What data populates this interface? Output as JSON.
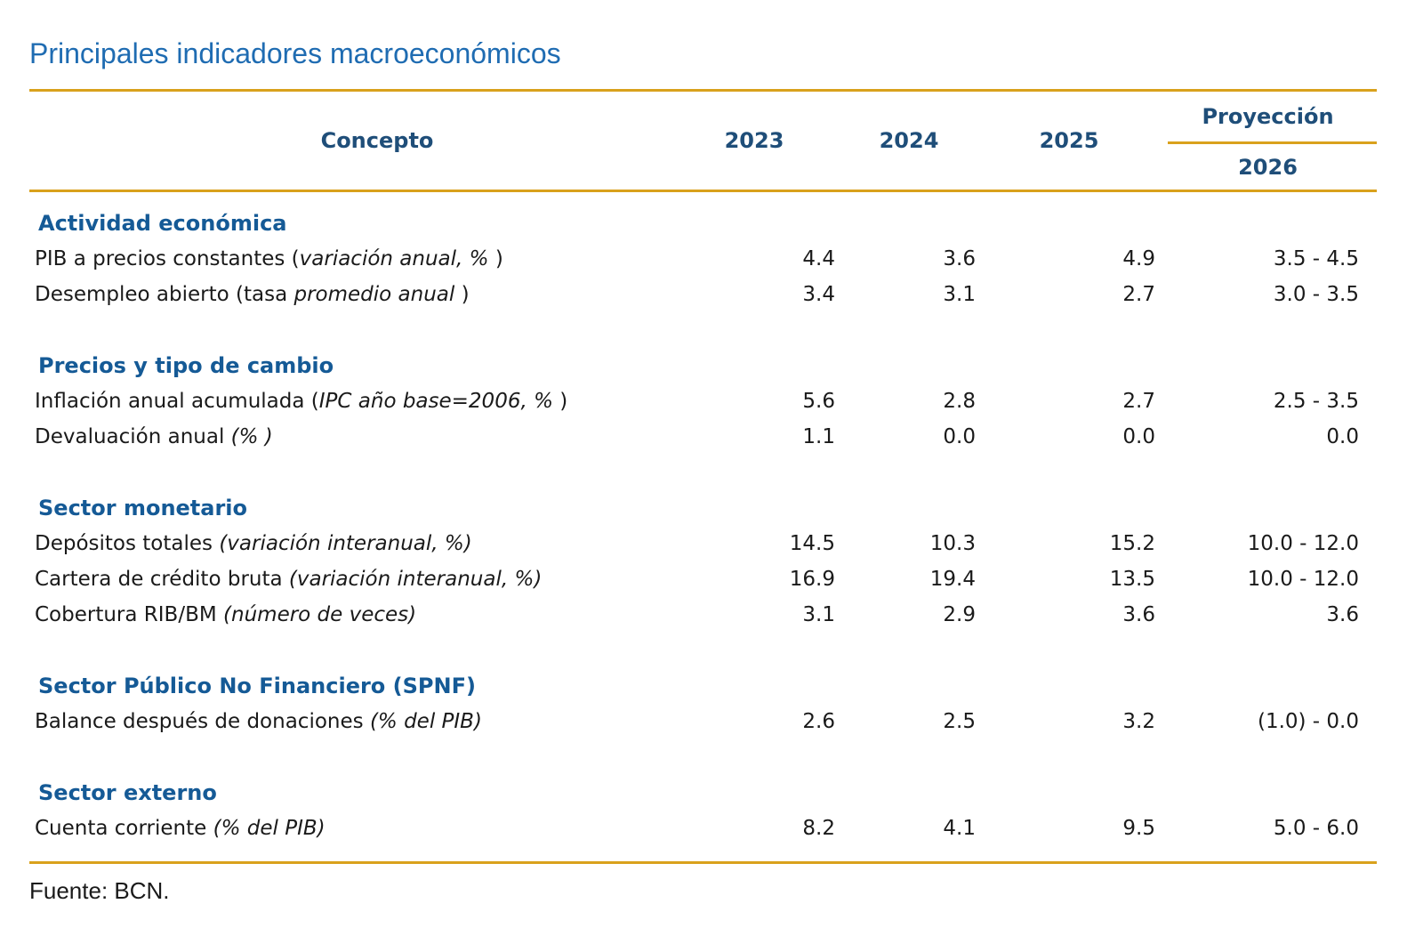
{
  "page": {
    "title": "Principales indicadores macroeconómicos",
    "source_note": "Fuente: BCN."
  },
  "colors": {
    "accent_gold": "#D9A11C",
    "header_navy": "#1F4E79",
    "section_blue": "#155A96",
    "title_blue": "#1F6CB2",
    "body_text": "#1A1A1A"
  },
  "table": {
    "concept_header": "Concepto",
    "year_headers": [
      "2023",
      "2024",
      "2025"
    ],
    "projection_header": "Proyección",
    "projection_year": "2026",
    "sections": [
      {
        "title": "Actividad económica",
        "rows": [
          {
            "pre": "PIB a precios constantes (",
            "italic": "variación anual, % ",
            "post": ")",
            "values": [
              "4.4",
              "3.6",
              "4.9",
              "3.5 - 4.5"
            ]
          },
          {
            "pre": "Desempleo abierto (tasa ",
            "italic": "promedio anual ",
            "post": ")",
            "values": [
              "3.4",
              "3.1",
              "2.7",
              "3.0 - 3.5"
            ]
          }
        ]
      },
      {
        "title": "Precios y tipo de cambio",
        "rows": [
          {
            "pre": "Inflación anual acumulada (",
            "italic": "IPC año base=2006, % ",
            "post": ")",
            "values": [
              "5.6",
              "2.8",
              "2.7",
              "2.5 - 3.5"
            ]
          },
          {
            "pre": "Devaluación anual ",
            "italic": "(% )",
            "post": "",
            "values": [
              "1.1",
              "0.0",
              "0.0",
              "0.0"
            ]
          }
        ]
      },
      {
        "title": "Sector monetario",
        "rows": [
          {
            "pre": "Depósitos totales ",
            "italic": "(variación interanual, %)",
            "post": "",
            "values": [
              "14.5",
              "10.3",
              "15.2",
              "10.0 - 12.0"
            ]
          },
          {
            "pre": "Cartera de crédito bruta ",
            "italic": "(variación interanual, %)",
            "post": "",
            "values": [
              "16.9",
              "19.4",
              "13.5",
              "10.0 - 12.0"
            ]
          },
          {
            "pre": "Cobertura RIB/BM ",
            "italic": "(número de veces)",
            "post": "",
            "values": [
              "3.1",
              "2.9",
              "3.6",
              "3.6"
            ]
          }
        ]
      },
      {
        "title": "Sector Público No Financiero (SPNF)",
        "rows": [
          {
            "pre": "Balance después de donaciones ",
            "italic": "(% del PIB)",
            "post": "",
            "values": [
              "2.6",
              "2.5",
              "3.2",
              "(1.0) - 0.0"
            ]
          }
        ]
      },
      {
        "title": "Sector externo",
        "rows": [
          {
            "pre": "Cuenta corriente ",
            "italic": "(% del PIB)",
            "post": "",
            "values": [
              "8.2",
              "4.1",
              "9.5",
              "5.0 - 6.0"
            ]
          }
        ]
      }
    ]
  }
}
